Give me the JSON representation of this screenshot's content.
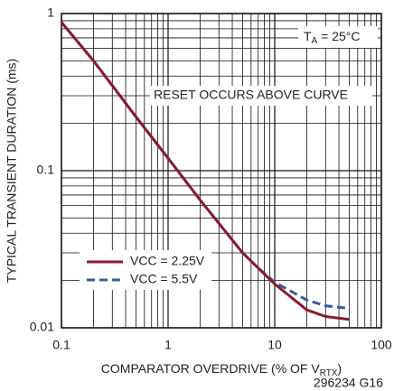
{
  "chart_data": {
    "type": "line",
    "ylabel": "TYPICAL TRANSIENT DURATION (ms)",
    "xlabel": {
      "text": "COMPARATOR OVERDRIVE (% OF V",
      "sub": "RTX",
      "end": ")"
    },
    "annotations": [
      {
        "text": "T",
        "sub": "A",
        "end": " = 25°C"
      },
      {
        "text": "RESET OCCURS ABOVE CURVE"
      }
    ],
    "footnote": "296234 G16",
    "x": [
      0.1,
      0.2,
      0.5,
      1,
      2,
      5,
      7,
      10,
      20,
      30,
      50
    ],
    "series": [
      {
        "name": "VCC = 2.25V",
        "color": "#8b1a2b",
        "dash": false,
        "values": [
          0.88,
          0.5,
          0.22,
          0.12,
          0.065,
          0.03,
          0.024,
          0.019,
          0.013,
          0.0118,
          0.0113
        ]
      },
      {
        "name": "VCC = 5.5V",
        "color": "#3a5aa0",
        "dash": true,
        "values": [
          0.88,
          0.5,
          0.22,
          0.12,
          0.065,
          0.03,
          0.024,
          0.0195,
          0.015,
          0.0138,
          0.0133
        ]
      }
    ],
    "xlim": [
      0.1,
      100
    ],
    "ylim": [
      0.01,
      1
    ],
    "xticks": [
      0.1,
      1,
      10,
      100
    ],
    "yticks": [
      0.01,
      0.1,
      1
    ],
    "xlog": true,
    "ylog": true,
    "grid": true
  }
}
